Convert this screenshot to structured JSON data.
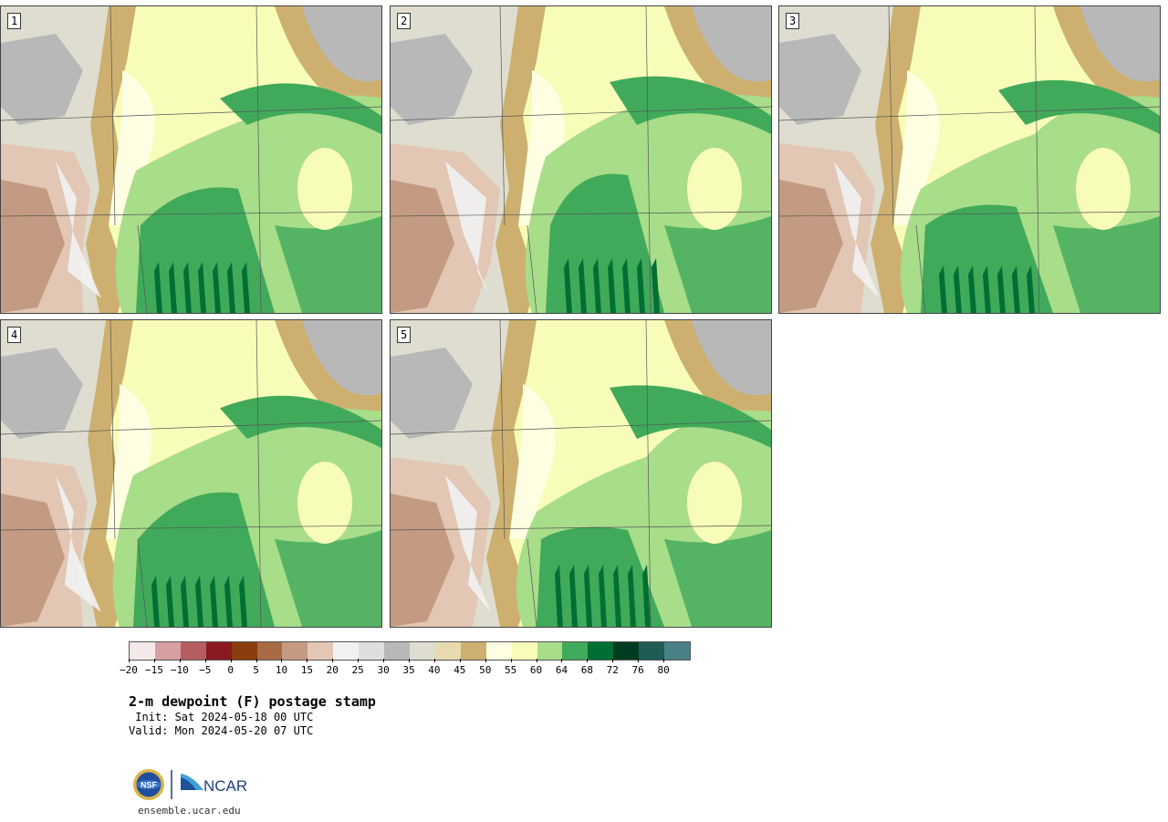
{
  "panels": [
    {
      "number": "1"
    },
    {
      "number": "2"
    },
    {
      "number": "3"
    },
    {
      "number": "4"
    },
    {
      "number": "5"
    }
  ],
  "colorbar": {
    "colors": [
      "#f5e8e8",
      "#d79fa2",
      "#b55e62",
      "#8b1a20",
      "#8a3d0d",
      "#a86b46",
      "#c49b82",
      "#e2c7b4",
      "#f2f2f2",
      "#dedede",
      "#b8b8b8",
      "#deddd0",
      "#e7dab0",
      "#cdb06f",
      "#fefee2",
      "#f8fcb9",
      "#a8dd8a",
      "#40aa5a",
      "#006f33",
      "#003d20",
      "#1f5c56",
      "#4b7f86"
    ],
    "tick_labels": [
      "−20",
      "−15",
      "−10",
      "−5",
      "0",
      "5",
      "10",
      "15",
      "20",
      "25",
      "30",
      "35",
      "40",
      "45",
      "50",
      "55",
      "60",
      "64",
      "68",
      "72",
      "76",
      "80"
    ]
  },
  "title": "2-m dewpoint (F) postage stamp",
  "init": " Init: Sat 2024-05-18 00 UTC",
  "valid": "Valid: Mon 2024-05-20 07 UTC",
  "logo": {
    "nsf": "NSF",
    "ncar": "NCAR"
  },
  "website": "ensemble.ucar.edu"
}
